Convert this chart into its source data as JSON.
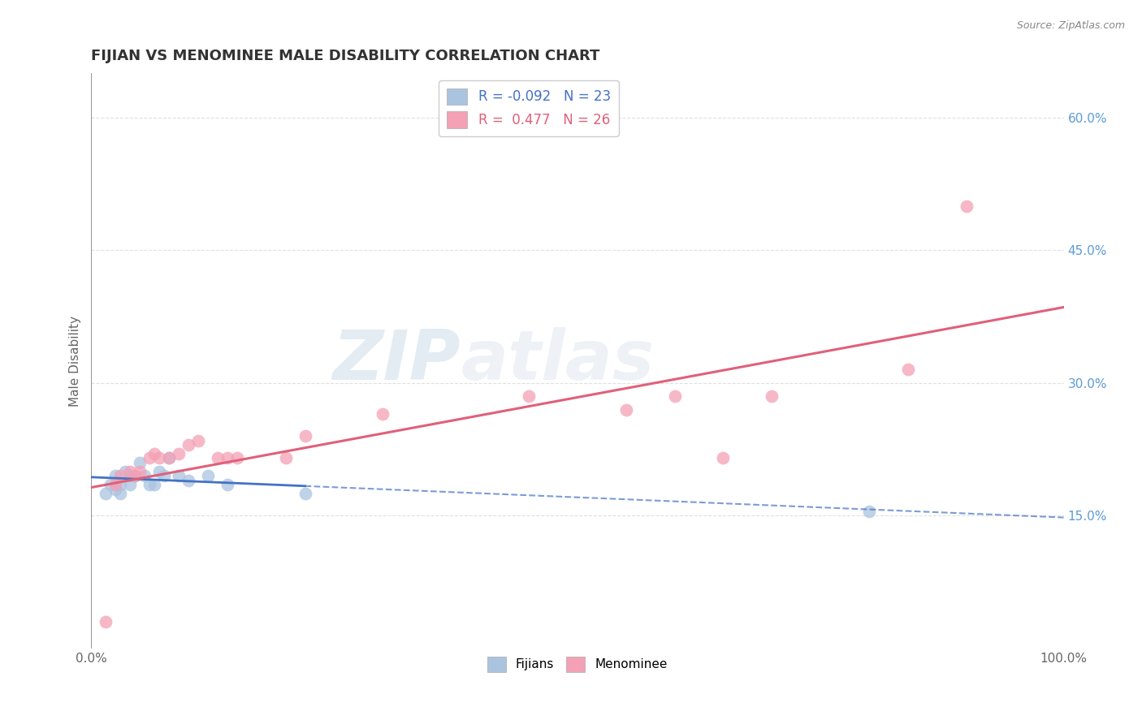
{
  "title": "FIJIAN VS MENOMINEE MALE DISABILITY CORRELATION CHART",
  "source_text": "Source: ZipAtlas.com",
  "ylabel": "Male Disability",
  "watermark_zip": "ZIP",
  "watermark_atlas": "atlas",
  "xlim": [
    0.0,
    1.0
  ],
  "ylim": [
    0.0,
    0.65
  ],
  "xticks": [
    0.0,
    0.25,
    0.5,
    0.75,
    1.0
  ],
  "xticklabels": [
    "0.0%",
    "",
    "",
    "",
    "100.0%"
  ],
  "yticks": [
    0.15,
    0.3,
    0.45,
    0.6
  ],
  "yticklabels": [
    "15.0%",
    "30.0%",
    "45.0%",
    "60.0%"
  ],
  "fijian_R": "-0.092",
  "fijian_N": "23",
  "menominee_R": "0.477",
  "menominee_N": "26",
  "fijian_color": "#aac4e0",
  "menominee_color": "#f4a0b5",
  "fijian_line_color": "#4472c4",
  "menominee_line_color": "#e0607a",
  "legend_fijian_label": "Fijians",
  "legend_menominee_label": "Menominee",
  "fijian_x": [
    0.015,
    0.02,
    0.025,
    0.025,
    0.03,
    0.03,
    0.035,
    0.04,
    0.04,
    0.045,
    0.05,
    0.055,
    0.06,
    0.065,
    0.07,
    0.075,
    0.08,
    0.09,
    0.1,
    0.12,
    0.14,
    0.22,
    0.8
  ],
  "fijian_y": [
    0.175,
    0.185,
    0.195,
    0.18,
    0.185,
    0.175,
    0.2,
    0.195,
    0.185,
    0.195,
    0.21,
    0.195,
    0.185,
    0.185,
    0.2,
    0.195,
    0.215,
    0.195,
    0.19,
    0.195,
    0.185,
    0.175,
    0.155
  ],
  "menominee_x": [
    0.015,
    0.025,
    0.03,
    0.04,
    0.045,
    0.05,
    0.06,
    0.065,
    0.07,
    0.08,
    0.09,
    0.1,
    0.11,
    0.13,
    0.14,
    0.15,
    0.2,
    0.22,
    0.3,
    0.45,
    0.55,
    0.6,
    0.65,
    0.7,
    0.84,
    0.9
  ],
  "menominee_y": [
    0.03,
    0.185,
    0.195,
    0.2,
    0.195,
    0.2,
    0.215,
    0.22,
    0.215,
    0.215,
    0.22,
    0.23,
    0.235,
    0.215,
    0.215,
    0.215,
    0.215,
    0.24,
    0.265,
    0.285,
    0.27,
    0.285,
    0.215,
    0.285,
    0.315,
    0.5
  ],
  "background_color": "#ffffff",
  "grid_color": "#cccccc",
  "title_color": "#333333",
  "axis_label_color": "#666666",
  "right_tick_color": "#5B9BD5",
  "source_color": "#888888"
}
